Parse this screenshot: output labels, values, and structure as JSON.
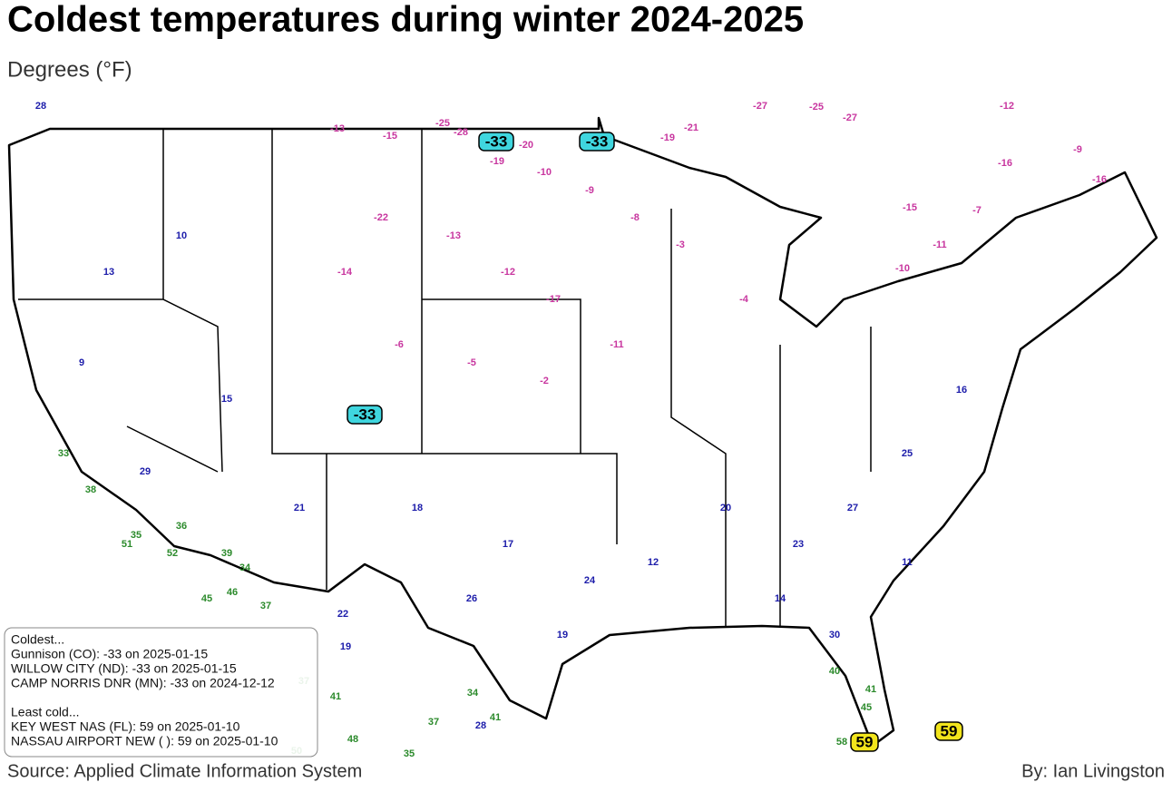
{
  "header": {
    "title": "Coldest temperatures during winter 2024-2025",
    "subtitle": "Degrees (°F)"
  },
  "map": {
    "labels": [
      28,
      -27,
      -25,
      -27,
      -12,
      -21,
      -19,
      -9,
      -16,
      -16,
      -15,
      -7,
      -11,
      -10,
      22,
      19,
      37,
      41,
      34,
      37,
      28,
      41,
      48,
      35,
      50,
      45,
      46,
      37,
      34,
      58,
      -13,
      -15,
      -25,
      -28,
      -20,
      -19,
      -10,
      -9,
      -8,
      -3,
      -12,
      -17,
      -13,
      -22,
      -14,
      -6,
      -5,
      -2,
      -11,
      -4,
      13,
      10,
      9,
      15,
      21,
      18,
      17,
      24,
      12,
      20,
      23,
      27,
      25,
      16,
      11,
      14,
      19,
      26,
      29,
      30,
      33,
      38,
      35,
      36,
      39,
      40,
      41,
      45,
      51,
      52
    ],
    "highlights": [
      -33,
      -33,
      -33,
      59,
      59
    ]
  },
  "legend": {
    "coldest_heading": "Coldest...",
    "coldest": [
      "Gunnison (CO): -33 on 2025-01-15",
      "WILLOW CITY (ND): -33 on 2025-01-15",
      "CAMP NORRIS DNR (MN): -33 on 2024-12-12"
    ],
    "least_heading": "Least cold...",
    "least": [
      "KEY WEST NAS (FL): 59 on 2025-01-10",
      "NASSAU AIRPORT NEW (  ): 59 on 2025-01-10"
    ]
  },
  "footer": {
    "source": "Source: Applied Climate Information System",
    "byline": "By: Ian Livingston"
  }
}
